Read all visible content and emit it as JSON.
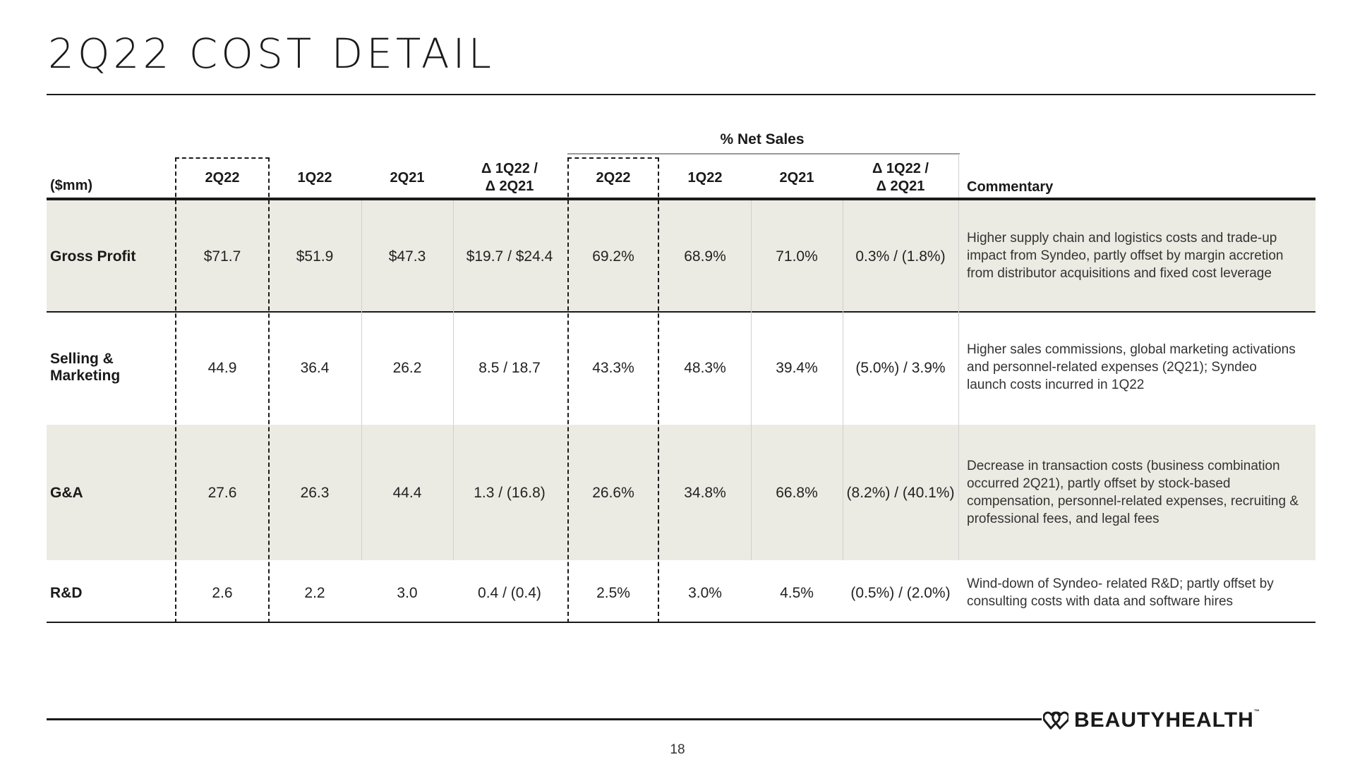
{
  "title": "2Q22 COST DETAIL",
  "net_sales_label": "% Net Sales",
  "headers": {
    "unit": "($mm)",
    "dollar_2q22": "2Q22",
    "dollar_1q22": "1Q22",
    "dollar_2q21": "2Q21",
    "dollar_delta_1": "Δ 1Q22 /",
    "dollar_delta_2": "Δ 2Q21",
    "pct_2q22": "2Q22",
    "pct_1q22": "1Q22",
    "pct_2q21": "2Q21",
    "pct_delta_1": "Δ 1Q22 /",
    "pct_delta_2": "Δ 2Q21",
    "commentary": "Commentary"
  },
  "rows": [
    {
      "label": "Gross Profit",
      "values": [
        "$71.7",
        "$51.9",
        "$47.3",
        "$19.7 / $24.4",
        "69.2%",
        "68.9%",
        "71.0%",
        "0.3% / (1.8%)"
      ],
      "commentary": [
        "Higher supply chain and logistics costs and trade-up",
        "impact from Syndeo, partly offset by margin accretion",
        "from distributor acquisitions and fixed cost leverage"
      ]
    },
    {
      "label_lines": [
        "Selling &",
        "Marketing"
      ],
      "values": [
        "44.9",
        "36.4",
        "26.2",
        "8.5 / 18.7",
        "43.3%",
        "48.3%",
        "39.4%",
        "(5.0%) / 3.9%"
      ],
      "commentary": [
        "Higher sales commissions, global marketing activations",
        "and personnel-related expenses (2Q21); Syndeo",
        "launch costs incurred in 1Q22"
      ]
    },
    {
      "label": "G&A",
      "values": [
        "27.6",
        "26.3",
        "44.4",
        "1.3 / (16.8)",
        "26.6%",
        "34.8%",
        "66.8%",
        "(8.2%) / (40.1%)"
      ],
      "commentary": [
        "Decrease in transaction costs (business combination",
        "occurred 2Q21), partly offset by stock-based",
        "compensation, personnel-related expenses, recruiting &",
        "professional fees, and legal fees"
      ]
    },
    {
      "label": "R&D",
      "values": [
        "2.6",
        "2.2",
        "3.0",
        "0.4 / (0.4)",
        "2.5%",
        "3.0%",
        "4.5%",
        "(0.5%) / (2.0%)"
      ],
      "commentary": [
        "Wind-down of Syndeo- related R&D; partly offset by",
        "consulting costs with data and software hires"
      ]
    }
  ],
  "logo": {
    "text": "BEAUTYHEALTH",
    "tm": "™",
    "icon": "double-heart-icon"
  },
  "page_number": "18",
  "colors": {
    "shaded_row": "#ecebe3",
    "rule": "#1a1a1a"
  }
}
